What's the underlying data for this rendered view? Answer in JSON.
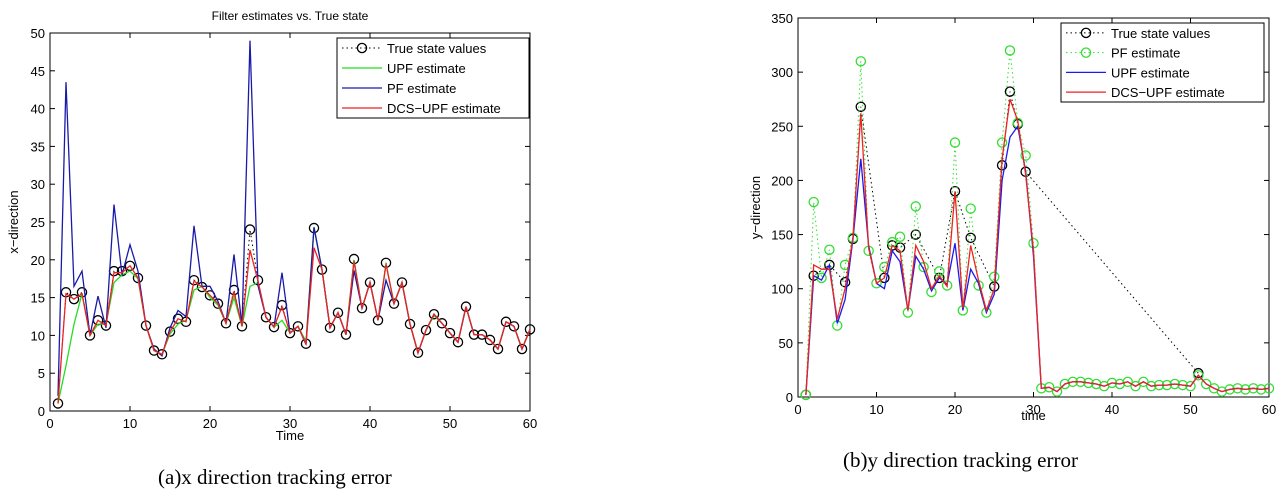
{
  "captions": {
    "left": "(a)x direction tracking error",
    "right": "(b)y direction tracking error"
  },
  "chart_data": [
    {
      "type": "line",
      "title": "Filter estimates vs. True state",
      "xlabel": "Time",
      "ylabel": "x−direction",
      "xlim": [
        0,
        60
      ],
      "ylim": [
        0,
        50
      ],
      "xticks": [
        0,
        10,
        20,
        30,
        40,
        50,
        60
      ],
      "yticks": [
        0,
        5,
        10,
        15,
        20,
        25,
        30,
        35,
        40,
        45,
        50
      ],
      "grid": false,
      "legend_position": "top-right",
      "x": [
        1,
        2,
        3,
        4,
        5,
        6,
        7,
        8,
        9,
        10,
        11,
        12,
        13,
        14,
        15,
        16,
        17,
        18,
        19,
        20,
        21,
        22,
        23,
        24,
        25,
        26,
        27,
        28,
        29,
        30,
        31,
        32,
        33,
        34,
        35,
        36,
        37,
        38,
        39,
        40,
        41,
        42,
        43,
        44,
        45,
        46,
        47,
        48,
        49,
        50,
        51,
        52,
        53,
        54,
        55,
        56,
        57,
        58,
        59,
        60
      ],
      "series": [
        {
          "name": "True state values",
          "style": "dotted-circle",
          "color": "#000000",
          "values": [
            1,
            15.7,
            14.8,
            15.7,
            10,
            12,
            11.3,
            18.5,
            18.5,
            19.2,
            17.6,
            11.3,
            8,
            7.5,
            10.5,
            12.2,
            11.8,
            17.3,
            16.4,
            15.3,
            14.2,
            11.6,
            16,
            11.2,
            24,
            17.3,
            12.4,
            11.1,
            14,
            10.3,
            11.2,
            8.9,
            24.2,
            18.7,
            11,
            13,
            10.1,
            20.1,
            13.6,
            17,
            12,
            19.6,
            14.2,
            17,
            11.5,
            7.7,
            10.7,
            12.8,
            11.6,
            10.3,
            9.1,
            13.8,
            10.1,
            10.1,
            9.4,
            8.2,
            11.8,
            11.2,
            8.2,
            10.8
          ]
        },
        {
          "name": "UPF estimate",
          "style": "solid",
          "color": "#22dd22",
          "values": [
            1,
            6,
            11.5,
            15.5,
            10,
            11.5,
            11.5,
            17,
            18,
            18.5,
            17.5,
            11.3,
            8,
            7.5,
            10.2,
            11.5,
            12,
            16,
            16.5,
            15,
            14,
            11.6,
            15,
            11.2,
            16.5,
            17,
            12.4,
            11.1,
            12,
            10.3,
            11.2,
            9.2,
            24.3,
            18.7,
            11,
            13,
            10.1,
            20,
            13.6,
            17,
            12,
            19.5,
            14.2,
            17,
            11.5,
            7.7,
            10.7,
            12.6,
            11.6,
            10.3,
            9.1,
            13.8,
            10.1,
            10.1,
            9.4,
            8.2,
            11.8,
            11.2,
            8.2,
            10.8
          ]
        },
        {
          "name": "PF estimate",
          "style": "solid",
          "color": "#1a1aa8",
          "values": [
            2,
            43.5,
            16.5,
            18.5,
            10,
            15.2,
            11,
            27.3,
            18,
            22,
            18.5,
            11.3,
            8.2,
            7.3,
            11,
            13.3,
            12.5,
            24.5,
            16.5,
            16.5,
            14.5,
            11.6,
            20.7,
            11.2,
            49,
            16.6,
            12.4,
            11.1,
            18.3,
            10.3,
            11.2,
            8.8,
            24.3,
            18.7,
            11,
            13,
            10.1,
            18.6,
            13.6,
            17,
            12,
            17.3,
            14.2,
            17,
            11.5,
            7.7,
            10.7,
            12.8,
            11.6,
            10.3,
            9.1,
            13.8,
            10.1,
            10.1,
            9.4,
            8.2,
            11.8,
            11.2,
            8.2,
            10.8
          ]
        },
        {
          "name": "DCS−UPF estimate",
          "style": "solid",
          "color": "#ee2222",
          "values": [
            1,
            15.5,
            14.8,
            15.5,
            10,
            12,
            11.3,
            18.3,
            18.3,
            19.2,
            17.6,
            11.3,
            8,
            7.5,
            10.5,
            12.2,
            11.8,
            17.2,
            16.4,
            15.3,
            14.2,
            11.6,
            15.8,
            11.2,
            21.3,
            17.2,
            12.4,
            11.1,
            13.8,
            10.3,
            11.2,
            8.9,
            21.6,
            18.7,
            11,
            13,
            10.1,
            19.8,
            13.6,
            17,
            12,
            19.4,
            14.2,
            17,
            11.5,
            7.7,
            10.7,
            12.8,
            11.6,
            10.3,
            9.1,
            13.8,
            10.1,
            10.1,
            9.4,
            8.2,
            11.8,
            11.2,
            8.2,
            10.8
          ]
        }
      ]
    },
    {
      "type": "line",
      "title": "",
      "xlabel": "time",
      "ylabel": "y−direction",
      "xlim": [
        0,
        60
      ],
      "ylim": [
        0,
        350
      ],
      "xticks": [
        0,
        10,
        20,
        30,
        40,
        50,
        60
      ],
      "yticks": [
        0,
        50,
        100,
        150,
        200,
        250,
        300,
        350
      ],
      "grid": false,
      "legend_position": "top-right",
      "x": [
        1,
        2,
        3,
        4,
        5,
        6,
        7,
        8,
        9,
        10,
        11,
        12,
        13,
        14,
        15,
        16,
        17,
        18,
        19,
        20,
        21,
        22,
        23,
        24,
        25,
        26,
        27,
        28,
        29,
        30,
        31,
        32,
        33,
        34,
        35,
        36,
        37,
        38,
        39,
        40,
        41,
        42,
        43,
        44,
        45,
        46,
        47,
        48,
        49,
        50,
        51,
        52,
        53,
        54,
        55,
        56,
        57,
        58,
        59,
        60
      ],
      "series": [
        {
          "name": "True state values",
          "style": "dotted-circle",
          "color": "#000000",
          "values": [
            2,
            112,
            null,
            122,
            null,
            106,
            146,
            268,
            null,
            null,
            110,
            140,
            138,
            null,
            150,
            null,
            null,
            110,
            null,
            190,
            null,
            147,
            null,
            null,
            102,
            214,
            282,
            252,
            208,
            null,
            null,
            null,
            null,
            null,
            null,
            null,
            null,
            null,
            null,
            null,
            null,
            null,
            null,
            null,
            null,
            null,
            null,
            null,
            null,
            null,
            22,
            null,
            null,
            null,
            null,
            null,
            null,
            null,
            null,
            null
          ]
        },
        {
          "name": "PF estimate",
          "style": "dotted-circle",
          "color": "#33dd33",
          "values": [
            2,
            180,
            110,
            136,
            66,
            122,
            147,
            310,
            135,
            105,
            120,
            143,
            148,
            78,
            176,
            120,
            97,
            116,
            103,
            235,
            80,
            174,
            103,
            78,
            111,
            235,
            320,
            253,
            223,
            142,
            8,
            9,
            5,
            12,
            14,
            14,
            13,
            12,
            10,
            13,
            12,
            14,
            10,
            14,
            10,
            11,
            11,
            12,
            11,
            10,
            20,
            12,
            8,
            5,
            7,
            8,
            7,
            8,
            7,
            8
          ]
        },
        {
          "name": "UPF estimate",
          "style": "solid",
          "color": "#1a1aee",
          "values": [
            2,
            112,
            108,
            122,
            68,
            90,
            146,
            220,
            140,
            105,
            100,
            135,
            125,
            80,
            130,
            118,
            98,
            110,
            104,
            142,
            80,
            118,
            105,
            78,
            95,
            200,
            240,
            250,
            208,
            130,
            8,
            9,
            5,
            12,
            14,
            14,
            13,
            12,
            10,
            13,
            12,
            14,
            10,
            14,
            10,
            11,
            11,
            12,
            11,
            10,
            20,
            12,
            8,
            5,
            7,
            8,
            7,
            8,
            7,
            8
          ]
        },
        {
          "name": "DCS−UPF estimate",
          "style": "solid",
          "color": "#ee2222",
          "values": [
            2,
            122,
            118,
            118,
            72,
            100,
            148,
            262,
            138,
            105,
            110,
            140,
            135,
            80,
            140,
            125,
            100,
            112,
            102,
            190,
            82,
            140,
            108,
            80,
            100,
            220,
            275,
            255,
            205,
            135,
            8,
            9,
            5,
            12,
            14,
            14,
            13,
            12,
            10,
            13,
            12,
            14,
            10,
            14,
            10,
            11,
            11,
            12,
            11,
            10,
            20,
            12,
            8,
            5,
            7,
            8,
            7,
            8,
            7,
            8
          ]
        }
      ]
    }
  ]
}
